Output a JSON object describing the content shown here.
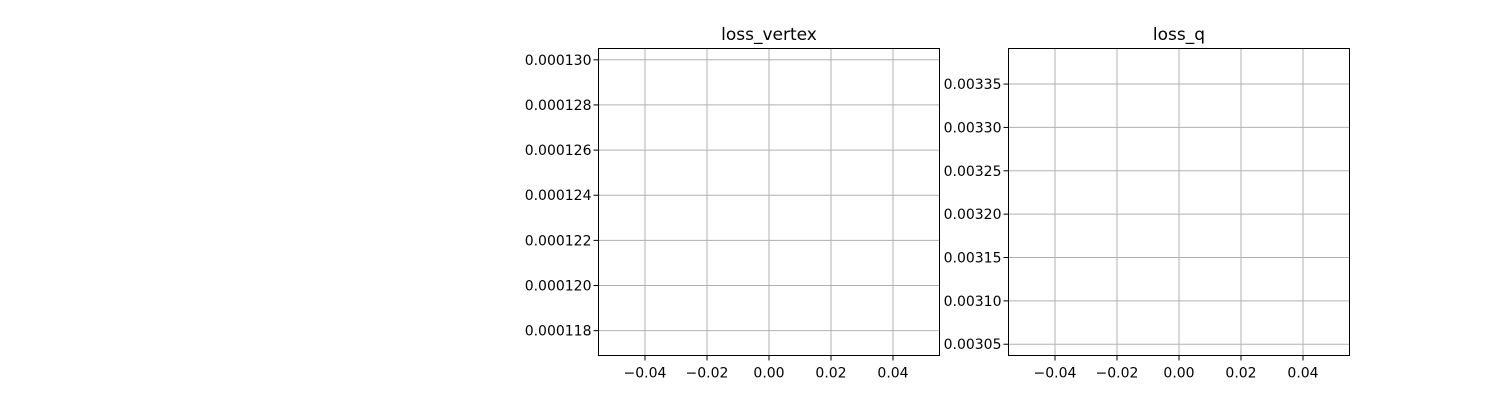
{
  "chart_data": [
    {
      "type": "line",
      "title": "loss_vertex",
      "xlabel": "",
      "ylabel": "",
      "series": [],
      "xlim": [
        -0.055,
        0.055
      ],
      "ylim": [
        0.0001169,
        0.0001305
      ],
      "xticks": [
        -0.04,
        -0.02,
        0.0,
        0.02,
        0.04
      ],
      "xtick_labels": [
        "−0.04",
        "−0.02",
        "0.00",
        "0.02",
        "0.04"
      ],
      "yticks": [
        0.000118,
        0.00012,
        0.000122,
        0.000124,
        0.000126,
        0.000128,
        0.00013
      ],
      "ytick_labels": [
        "0.000118",
        "0.000120",
        "0.000122",
        "0.000124",
        "0.000126",
        "0.000128",
        "0.000130"
      ],
      "grid": true
    },
    {
      "type": "line",
      "title": "loss_q",
      "xlabel": "",
      "ylabel": "",
      "series": [],
      "xlim": [
        -0.055,
        0.055
      ],
      "ylim": [
        0.003037,
        0.003391
      ],
      "xticks": [
        -0.04,
        -0.02,
        0.0,
        0.02,
        0.04
      ],
      "xtick_labels": [
        "−0.04",
        "−0.02",
        "0.00",
        "0.02",
        "0.04"
      ],
      "yticks": [
        0.00305,
        0.0031,
        0.00315,
        0.0032,
        0.00325,
        0.0033,
        0.00335
      ],
      "ytick_labels": [
        "0.00305",
        "0.00310",
        "0.00315",
        "0.00320",
        "0.00325",
        "0.00330",
        "0.00335"
      ],
      "grid": true
    }
  ]
}
